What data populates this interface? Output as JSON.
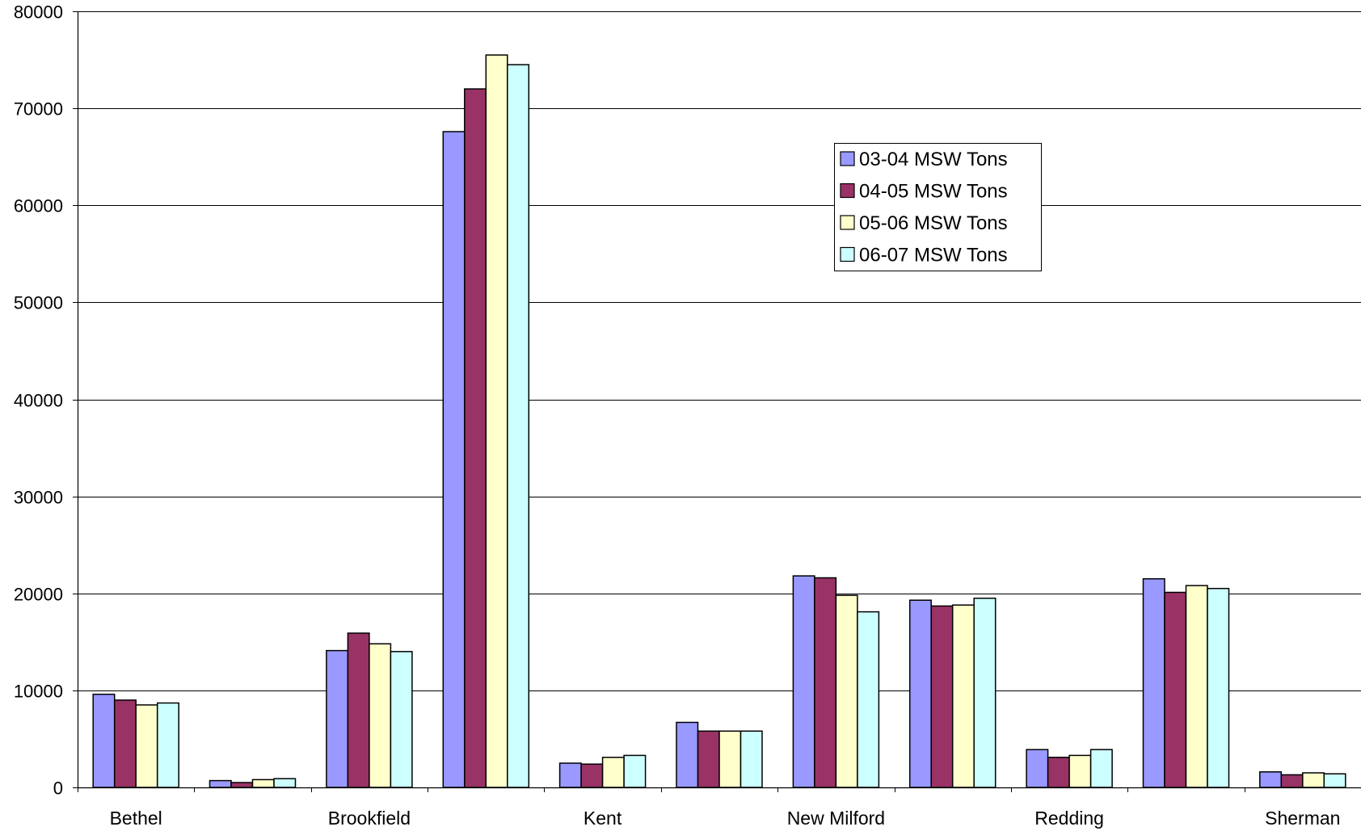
{
  "chart_data": {
    "type": "bar",
    "title": "",
    "xlabel": "",
    "ylabel": "",
    "ylim": [
      0,
      80000
    ],
    "yticks": [
      0,
      10000,
      20000,
      30000,
      40000,
      50000,
      60000,
      70000,
      80000
    ],
    "grid": true,
    "legend_position": "top-right",
    "category_labels_shown": [
      "Bethel",
      "",
      "Brookfield",
      "",
      "Kent",
      "",
      "New Milford",
      "",
      "Redding",
      "",
      "Sherman"
    ],
    "categories": [
      "Bethel",
      "",
      "Brookfield",
      "",
      "Kent",
      "",
      "New Milford",
      "",
      "Redding",
      "",
      "Sherman"
    ],
    "series": [
      {
        "name": "03-04 MSW Tons",
        "color": "#9999FF",
        "values": [
          9600,
          700,
          14100,
          67600,
          2500,
          6700,
          21800,
          19300,
          3900,
          21500,
          1600
        ]
      },
      {
        "name": "04-05 MSW Tons",
        "color": "#993366",
        "values": [
          9000,
          500,
          15900,
          72000,
          2400,
          5800,
          21600,
          18700,
          3100,
          20100,
          1300
        ]
      },
      {
        "name": "05-06 MSW Tons",
        "color": "#FFFFCC",
        "values": [
          8500,
          800,
          14800,
          75500,
          3100,
          5800,
          19800,
          18800,
          3300,
          20800,
          1500
        ]
      },
      {
        "name": "06-07 MSW Tons",
        "color": "#CCFFFF",
        "values": [
          8700,
          900,
          14000,
          74500,
          3300,
          5800,
          18100,
          19500,
          3900,
          20500,
          1400
        ]
      }
    ]
  }
}
